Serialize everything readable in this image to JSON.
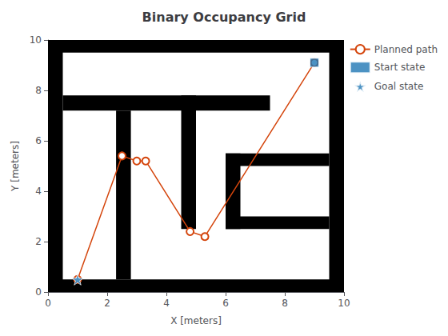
{
  "chart_data": {
    "type": "line",
    "title": "Binary Occupancy Grid",
    "x_label": "X [meters]",
    "y_label": "Y [meters]",
    "xlim": [
      0,
      10
    ],
    "ylim": [
      0,
      10
    ],
    "xticks": [
      0,
      2,
      4,
      6,
      8,
      10
    ],
    "yticks": [
      0,
      2,
      4,
      6,
      8,
      10
    ],
    "grid": false,
    "legend": "right",
    "series": [
      {
        "type": "rect",
        "color": "#000000",
        "xmin": [
          0.0,
          0.0,
          0.0,
          9.5,
          0.5,
          2.3,
          4.5,
          6.0,
          6.0,
          6.0
        ],
        "xmax": [
          10.0,
          10.0,
          0.5,
          10.0,
          7.5,
          2.8,
          5.0,
          9.5,
          6.5,
          9.5
        ],
        "ymin": [
          9.5,
          0.0,
          0.0,
          0.0,
          7.2,
          0.5,
          2.5,
          5.0,
          2.5,
          2.5
        ],
        "ymax": [
          10.0,
          0.5,
          10.0,
          10.0,
          7.8,
          7.2,
          7.8,
          5.5,
          5.5,
          3.0
        ]
      },
      {
        "name": "Planned path",
        "type": "line",
        "color": "#d4450c",
        "marker": "circle",
        "x": [
          1.0,
          2.5,
          3.0,
          3.3,
          4.8,
          5.3,
          9.0
        ],
        "values": [
          0.5,
          5.4,
          5.2,
          5.2,
          2.4,
          2.2,
          9.1
        ]
      },
      {
        "name": "Start state",
        "type": "scatter",
        "color": "#1f77b4",
        "marker": "square",
        "x": [
          9.0
        ],
        "values": [
          9.1
        ]
      },
      {
        "name": "Goal state",
        "type": "scatter",
        "color": "#1f77b4",
        "marker": "star",
        "x": [
          1.0
        ],
        "values": [
          0.5
        ]
      }
    ]
  }
}
